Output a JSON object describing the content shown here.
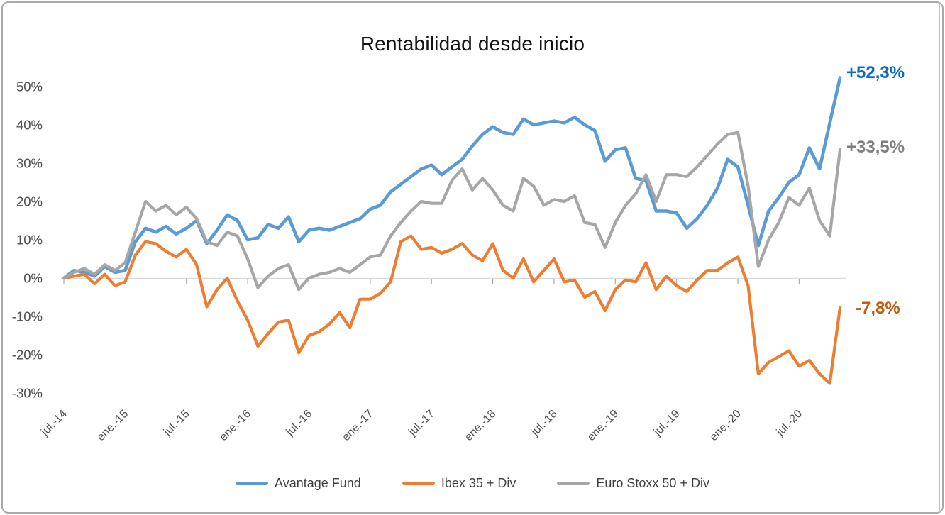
{
  "title": "Rentabilidad desde inicio",
  "chart_data": {
    "type": "line",
    "title": "Rentabilidad desde inicio",
    "x_start": "jul-2014",
    "x_end": "nov-2020",
    "frequency": "monthly",
    "x_tick_labels": [
      "jul.-14",
      "ene.-15",
      "jul.-15",
      "ene.-16",
      "jul.-16",
      "ene.-17",
      "jul.-17",
      "ene.-18",
      "jul.-18",
      "ene.-19",
      "jul.-19",
      "ene.-20",
      "jul.-20"
    ],
    "y_tick_labels": [
      "50%",
      "40%",
      "30%",
      "20%",
      "10%",
      "0%",
      "-10%",
      "-20%",
      "-30%"
    ],
    "y_axis": {
      "min": -30,
      "max": 50,
      "step": 10,
      "unit": "%"
    },
    "gridlines": "zero-line-only",
    "legend_position": "bottom",
    "axis_text_color": "#4f4f4f",
    "zero_line_color": "#d9d9d9",
    "tick_color": "#ababab",
    "series": [
      {
        "name": "Avantage Fund",
        "color": "#5B9BD5",
        "end_label": "+52,3%",
        "end_label_color": "#0a6cc8",
        "values": [
          0,
          2,
          1.5,
          0.5,
          3,
          1.5,
          2,
          9.5,
          13,
          12,
          13.5,
          11.5,
          13,
          15,
          9,
          12.5,
          16.5,
          15,
          10,
          10.5,
          14,
          13,
          16,
          9.5,
          12.5,
          13,
          12.5,
          13.5,
          14.5,
          15.5,
          18,
          19,
          22.5,
          24.5,
          26.5,
          28.5,
          29.5,
          27,
          29,
          31,
          34.5,
          37.5,
          39.5,
          38,
          37.5,
          41.5,
          40,
          40.5,
          41,
          40.5,
          42,
          40,
          38.5,
          30.5,
          33.5,
          34,
          26,
          25.5,
          17.5,
          17.5,
          17,
          13,
          15.5,
          19,
          23.5,
          31,
          29,
          19,
          8.5,
          17.5,
          21,
          25,
          27,
          34,
          28.5,
          40.5,
          52.3
        ]
      },
      {
        "name": "Ibex 35 + Div",
        "color": "#ED7D31",
        "end_label": "-7,8%",
        "end_label_color": "#C55A11",
        "values": [
          0,
          0.5,
          1,
          -1.5,
          1,
          -2,
          -1,
          6,
          9.5,
          9,
          7,
          5.5,
          7.5,
          3.5,
          -7.5,
          -3,
          0,
          -6,
          -11,
          -17.8,
          -14.5,
          -11.5,
          -11,
          -19.5,
          -15,
          -14,
          -12,
          -9,
          -13,
          -5.5,
          -5.5,
          -4,
          -1,
          9.5,
          11,
          7.5,
          8,
          6.5,
          7.5,
          9,
          6,
          4.5,
          9,
          2,
          0,
          5,
          -1,
          2,
          5,
          -1,
          -0.5,
          -5,
          -3.5,
          -8.5,
          -3,
          -0.5,
          -1,
          4,
          -3,
          0.5,
          -2,
          -3.5,
          -0.5,
          2,
          2,
          4,
          5.5,
          -2,
          -25,
          -22,
          -20.5,
          -19,
          -23,
          -21.5,
          -25,
          -27.5,
          -7.8
        ]
      },
      {
        "name": "Euro Stoxx 50 + Div",
        "color": "#A6A6A6",
        "end_label": "+33,5%",
        "end_label_color": "#7F7F7F",
        "values": [
          0,
          1.5,
          2.5,
          1,
          3.5,
          2,
          4,
          12,
          20,
          17.5,
          19,
          16.5,
          18.5,
          15.5,
          9.5,
          8.5,
          12,
          11,
          5,
          -2.5,
          0.5,
          2.5,
          3.5,
          -3,
          0,
          1,
          1.5,
          2.5,
          1.5,
          3.5,
          5.5,
          6,
          11,
          14.5,
          17.5,
          20,
          19.5,
          19.5,
          25.5,
          28.5,
          23,
          26,
          23,
          19,
          17.5,
          26,
          24,
          19,
          20.5,
          20,
          21.5,
          14.5,
          14,
          8,
          14.5,
          19,
          22,
          27,
          20,
          27,
          27,
          26.5,
          29,
          32,
          35,
          37.5,
          38,
          24,
          3,
          10,
          14.5,
          21,
          19,
          23.5,
          15,
          11,
          33.5
        ]
      }
    ]
  }
}
